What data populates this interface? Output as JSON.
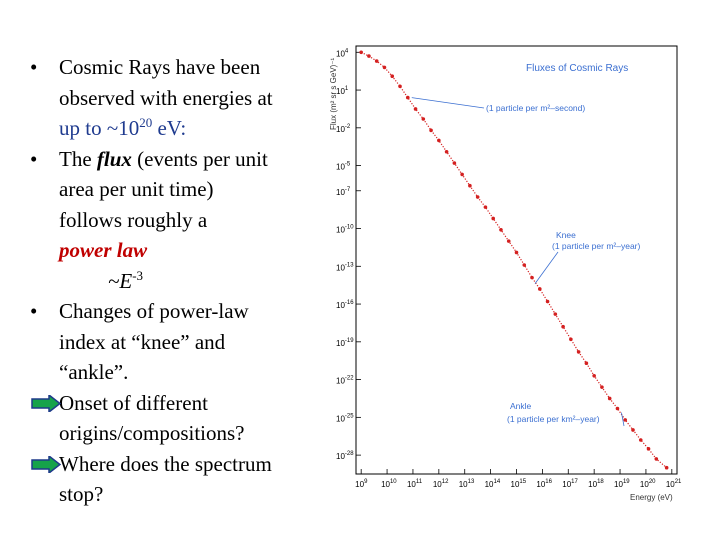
{
  "slide": {
    "b1": {
      "bullet": "•",
      "l1": "Cosmic Rays have been",
      "l2": "observed with energies at",
      "l3_main": "up to ~10",
      "l3_sup": "20",
      "l3_end": " eV:"
    },
    "b2": {
      "bullet": "•",
      "l1_pre": "The ",
      "l1_flux": "flux",
      "l1_post": " (events per unit",
      "l2": "area per unit time)",
      "l3": "follows roughly a",
      "l4": "power law",
      "l5_main": "~E",
      "l5_sup": "-3"
    },
    "b3": {
      "bullet": "•",
      "l1": "Changes of power-law",
      "l2": "index at “knee” and",
      "l3": "“ankle”."
    },
    "a1": {
      "l1": "Onset of different",
      "l2": "origins/compositions?"
    },
    "a2": {
      "l1": "Where does the spectrum",
      "l2": "stop?"
    }
  },
  "colors": {
    "accent_red": "#c00000",
    "arrow_green": "#16a34a",
    "arrow_blue": "#1e3a8a",
    "plot_text_blue": "#3b6fd1"
  },
  "chart_data": {
    "type": "scatter",
    "title": "Fluxes of Cosmic Rays",
    "xlabel": "Energy (eV)",
    "ylabel": "Flux (m² sr s GeV)⁻¹",
    "x_scale": "log10",
    "y_scale": "log10",
    "xlim": [
      8.8,
      21.2
    ],
    "ylim": [
      -29.5,
      4.5
    ],
    "x_ticks": [
      {
        "exp": 9,
        "label": "10",
        "sup": "9"
      },
      {
        "exp": 10,
        "label": "10",
        "sup": "10"
      },
      {
        "exp": 11,
        "label": "10",
        "sup": "11"
      },
      {
        "exp": 12,
        "label": "10",
        "sup": "12"
      },
      {
        "exp": 13,
        "label": "10",
        "sup": "13"
      },
      {
        "exp": 14,
        "label": "10",
        "sup": "14"
      },
      {
        "exp": 15,
        "label": "10",
        "sup": "15"
      },
      {
        "exp": 16,
        "label": "10",
        "sup": "16"
      },
      {
        "exp": 17,
        "label": "10",
        "sup": "17"
      },
      {
        "exp": 18,
        "label": "10",
        "sup": "18"
      },
      {
        "exp": 19,
        "label": "10",
        "sup": "19"
      },
      {
        "exp": 20,
        "label": "10",
        "sup": "20"
      },
      {
        "exp": 21,
        "label": "10",
        "sup": "21"
      }
    ],
    "y_ticks": [
      {
        "exp": 4,
        "label": "10",
        "sup": "4"
      },
      {
        "exp": 1,
        "label": "10",
        "sup": "1"
      },
      {
        "exp": -2,
        "label": "10",
        "sup": "-2"
      },
      {
        "exp": -5,
        "label": "10",
        "sup": "-5"
      },
      {
        "exp": -7,
        "label": "10",
        "sup": "-7"
      },
      {
        "exp": -10,
        "label": "10",
        "sup": "-10"
      },
      {
        "exp": -13,
        "label": "10",
        "sup": "-13"
      },
      {
        "exp": -16,
        "label": "10",
        "sup": "-16"
      },
      {
        "exp": -19,
        "label": "10",
        "sup": "-19"
      },
      {
        "exp": -22,
        "label": "10",
        "sup": "-22"
      },
      {
        "exp": -25,
        "label": "10",
        "sup": "-25"
      },
      {
        "exp": -28,
        "label": "10",
        "sup": "-28"
      }
    ],
    "series": [
      {
        "name": "flux data",
        "log_x": [
          9.0,
          9.3,
          9.6,
          9.9,
          10.2,
          10.5,
          10.8,
          11.1,
          11.4,
          11.7,
          12.0,
          12.3,
          12.6,
          12.9,
          13.2,
          13.5,
          13.8,
          14.1,
          14.4,
          14.7,
          15.0,
          15.3,
          15.6,
          15.9,
          16.2,
          16.5,
          16.8,
          17.1,
          17.4,
          17.7,
          18.0,
          18.3,
          18.6,
          18.9,
          19.2,
          19.5,
          19.8,
          20.1,
          20.4,
          20.8
        ],
        "log_y": [
          4.0,
          3.7,
          3.3,
          2.8,
          2.1,
          1.3,
          0.4,
          -0.5,
          -1.3,
          -2.2,
          -3.0,
          -3.9,
          -4.8,
          -5.7,
          -6.6,
          -7.5,
          -8.3,
          -9.2,
          -10.1,
          -11.0,
          -11.9,
          -12.9,
          -13.9,
          -14.8,
          -15.8,
          -16.8,
          -17.8,
          -18.8,
          -19.8,
          -20.7,
          -21.7,
          -22.6,
          -23.5,
          -24.3,
          -25.2,
          -26.0,
          -26.8,
          -27.5,
          -28.3,
          -29.0
        ]
      }
    ],
    "annotations": [
      {
        "text": "(1 particle per m²–second)",
        "x_log": 10.8,
        "y_log": 0.4
      },
      {
        "text": "Knee",
        "x_log": 15.6,
        "y_log": -13.9
      },
      {
        "text": "(1 particle per m²–year)",
        "x_log": 15.6,
        "y_log": -13.9
      },
      {
        "text": "Ankle",
        "x_log": 18.9,
        "y_log": -24.3
      },
      {
        "text": "(1 particle per km²–year)",
        "x_log": 18.9,
        "y_log": -24.3
      }
    ]
  }
}
